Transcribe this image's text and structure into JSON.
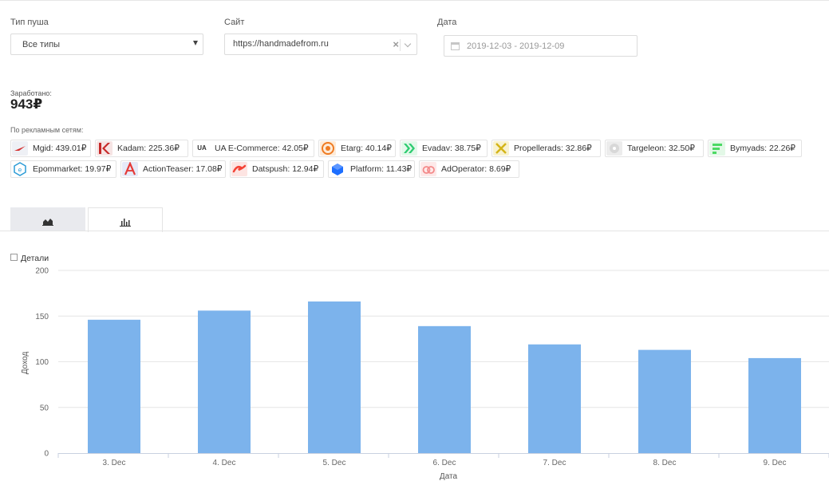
{
  "filters": {
    "push_type": {
      "label": "Тип пуша",
      "value": "Все типы"
    },
    "site": {
      "label": "Сайт",
      "value": "https://handmadefrom.ru"
    },
    "date": {
      "label": "Дата",
      "value": "2019-12-03 - 2019-12-09"
    }
  },
  "earnings": {
    "label": "Заработано:",
    "value": "943₽"
  },
  "networks": {
    "label": "По рекламным сетям:",
    "items": [
      {
        "text": "Mgid: 439.01₽",
        "icon": "mgid-icon",
        "color": "#d32f2f"
      },
      {
        "text": "Kadam: 225.36₽",
        "icon": "kadam-icon",
        "color": "#c62828"
      },
      {
        "text": "UA E-Commerce: 42.05₽",
        "icon": "ua-ecommerce-icon",
        "color": "#333333"
      },
      {
        "text": "Etarg: 40.14₽",
        "icon": "etarg-icon",
        "color": "#ef7b22"
      },
      {
        "text": "Evadav: 38.75₽",
        "icon": "evadav-icon",
        "color": "#2ecc71"
      },
      {
        "text": "Propellerads: 32.86₽",
        "icon": "propellerads-icon",
        "color": "#e6c619"
      },
      {
        "text": "Targeleon: 32.50₽",
        "icon": "targeleon-icon",
        "color": "#9e9e9e"
      },
      {
        "text": "Bymyads: 22.26₽",
        "icon": "bymyads-icon",
        "color": "#4cd964"
      },
      {
        "text": "Epommarket: 19.97₽",
        "icon": "epommarket-icon",
        "color": "#2a9bd6"
      },
      {
        "text": "ActionTeaser: 17.08₽",
        "icon": "actionteaser-icon",
        "color": "#e53935"
      },
      {
        "text": "Datspush: 12.94₽",
        "icon": "datspush-icon",
        "color": "#f44336"
      },
      {
        "text": "Platform: 11.43₽",
        "icon": "platform-icon",
        "color": "#1e6fff"
      },
      {
        "text": "AdOperator: 8.69₽",
        "icon": "adoperator-icon",
        "color": "#f48a8a"
      }
    ]
  },
  "tabs": [
    {
      "icon": "area-chart-icon"
    },
    {
      "icon": "bar-chart-icon"
    }
  ],
  "details_label": "Детали",
  "chart_data": {
    "type": "bar",
    "categories": [
      "3. Dec",
      "4. Dec",
      "5. Dec",
      "6. Dec",
      "7. Dec",
      "8. Dec",
      "9. Dec"
    ],
    "values": [
      146,
      156,
      166,
      139,
      119,
      113,
      104
    ],
    "xlabel": "Дата",
    "ylabel": "Доход",
    "ylim": [
      0,
      200
    ],
    "yticks": [
      0,
      50,
      100,
      150,
      200
    ],
    "bar_color": "#7cb3ec",
    "grid": true
  }
}
